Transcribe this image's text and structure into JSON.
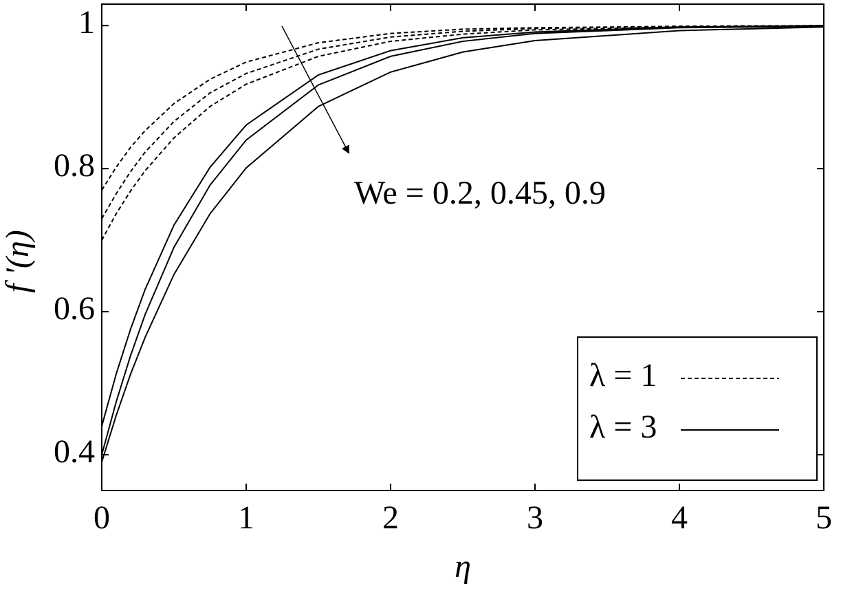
{
  "chart_data": {
    "type": "line",
    "x_label": "η",
    "y_label": "f '(η)",
    "annotation": "We = 0.2, 0.45, 0.9",
    "x": [
      0,
      0.1,
      0.2,
      0.3,
      0.5,
      0.75,
      1,
      1.5,
      2,
      2.5,
      3,
      4,
      5
    ],
    "series": [
      {
        "name": "λ = 1",
        "color": "#000000",
        "line_style": "dashed",
        "values": [
          0.77,
          0.802,
          0.83,
          0.853,
          0.891,
          0.925,
          0.949,
          0.976,
          0.989,
          0.995,
          0.997,
          0.999,
          1
        ]
      },
      {
        "name": "λ = 1",
        "color": "#000000",
        "line_style": "dashed",
        "values": [
          0.73,
          0.765,
          0.796,
          0.823,
          0.866,
          0.906,
          0.933,
          0.967,
          0.984,
          0.992,
          0.996,
          0.999,
          1
        ]
      },
      {
        "name": "λ = 1",
        "color": "#000000",
        "line_style": "dashed",
        "values": [
          0.7,
          0.737,
          0.769,
          0.797,
          0.843,
          0.887,
          0.918,
          0.957,
          0.978,
          0.988,
          0.994,
          0.998,
          1
        ]
      },
      {
        "name": "λ = 3",
        "color": "#000000",
        "line_style": "solid",
        "values": [
          0.44,
          0.513,
          0.576,
          0.631,
          0.721,
          0.802,
          0.861,
          0.931,
          0.965,
          0.983,
          0.991,
          0.998,
          0.999
        ]
      },
      {
        "name": "λ = 3",
        "color": "#000000",
        "line_style": "solid",
        "values": [
          0.4,
          0.474,
          0.539,
          0.596,
          0.69,
          0.777,
          0.84,
          0.917,
          0.957,
          0.978,
          0.989,
          0.997,
          0.999
        ]
      },
      {
        "name": "λ = 3",
        "color": "#000000",
        "line_style": "solid",
        "values": [
          0.39,
          0.455,
          0.513,
          0.564,
          0.652,
          0.737,
          0.801,
          0.887,
          0.935,
          0.963,
          0.979,
          0.993,
          0.998
        ]
      }
    ],
    "xlim": [
      0,
      5
    ],
    "xticks": [
      0,
      1,
      2,
      3,
      4,
      5
    ],
    "ylim": [
      0.35,
      1.03
    ],
    "yticks": [
      0.4,
      0.6,
      0.8,
      1
    ],
    "grid": false,
    "legend_position": "lower right"
  }
}
